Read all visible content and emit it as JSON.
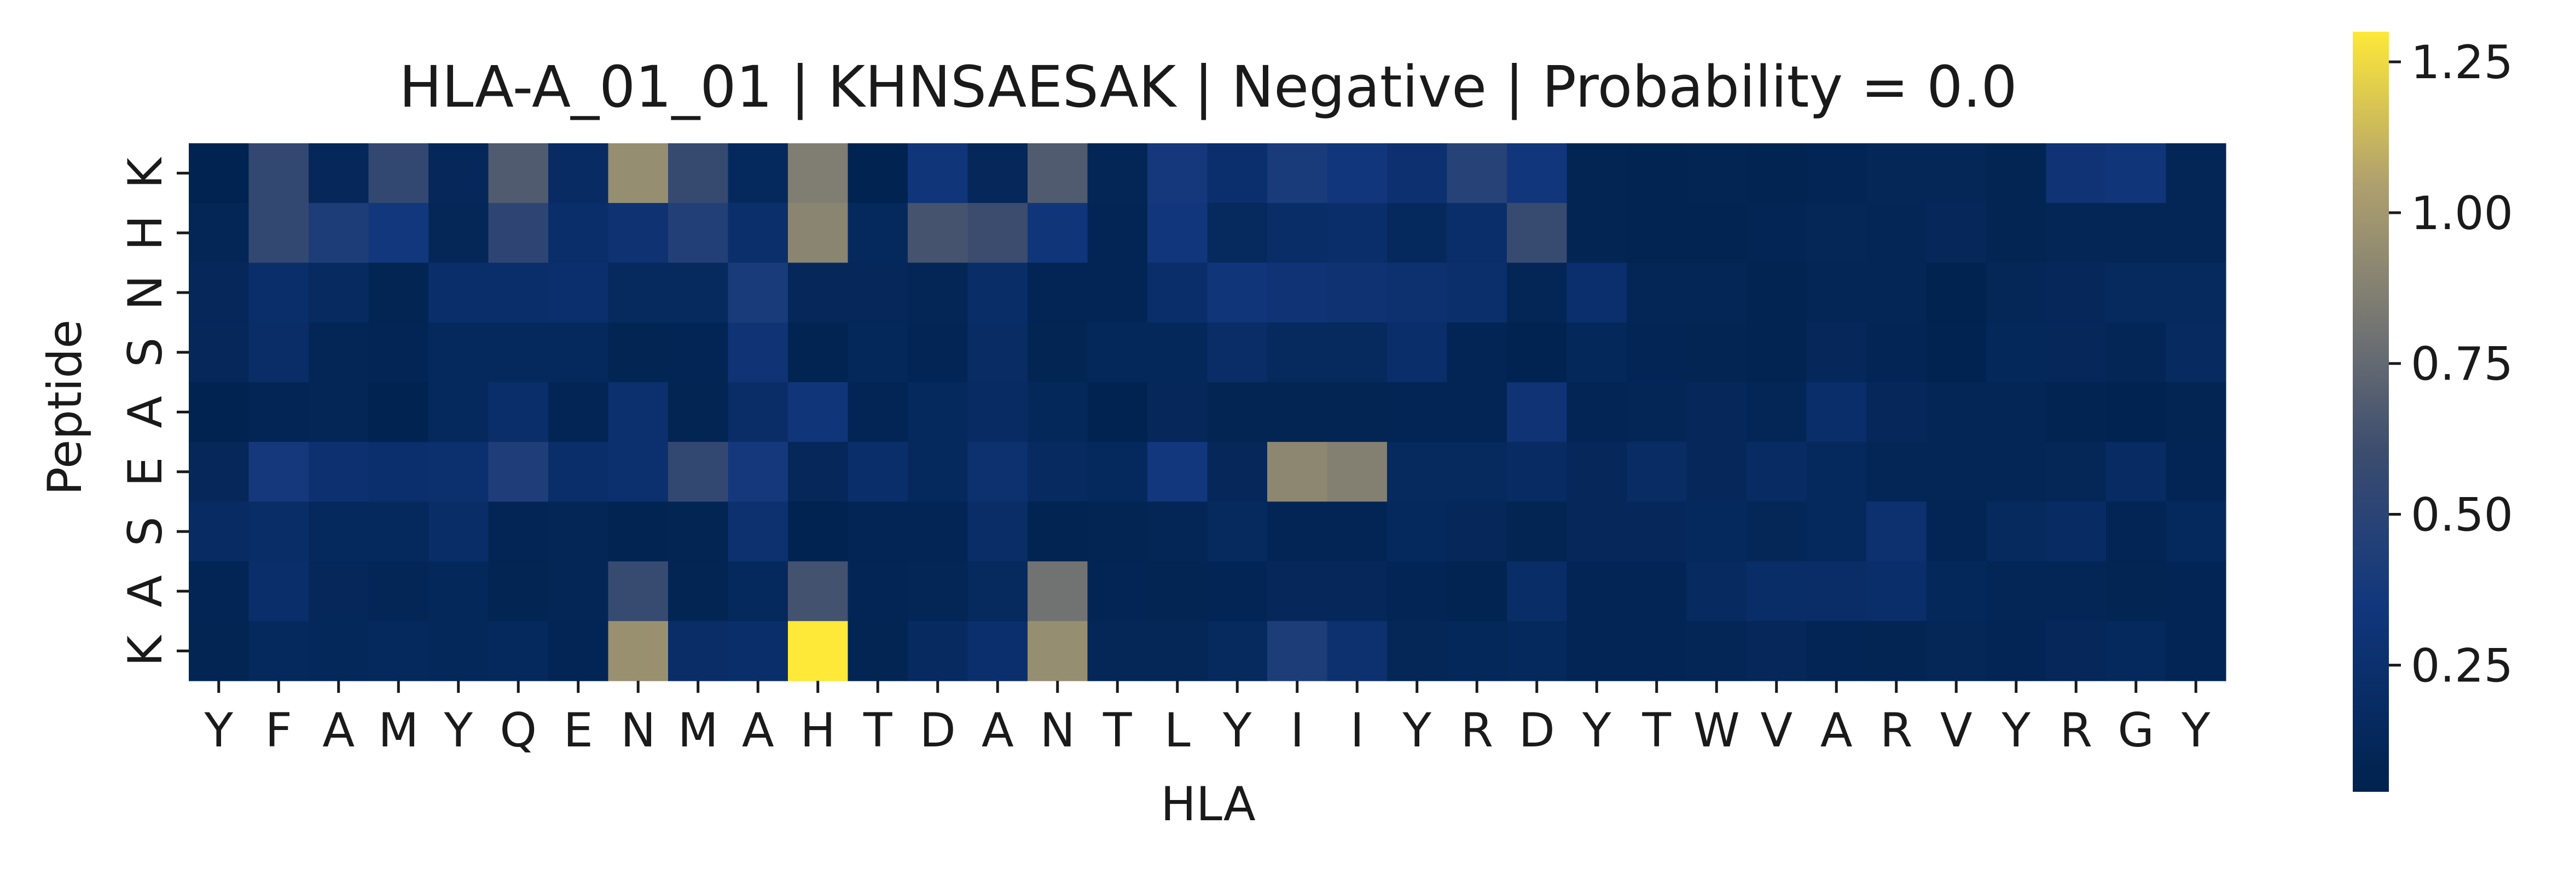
{
  "chart_data": {
    "type": "heatmap",
    "title": "HLA-A_01_01 | KHNSAESAK | Negative | Probability = 0.0",
    "xlabel": "HLA",
    "ylabel": "Peptide",
    "x_categories": [
      "Y",
      "F",
      "A",
      "M",
      "Y",
      "Q",
      "E",
      "N",
      "M",
      "A",
      "H",
      "T",
      "D",
      "A",
      "N",
      "T",
      "L",
      "Y",
      "I",
      "I",
      "Y",
      "R",
      "D",
      "Y",
      "T",
      "W",
      "V",
      "A",
      "R",
      "V",
      "Y",
      "R",
      "G",
      "Y"
    ],
    "y_categories": [
      "K",
      "H",
      "N",
      "S",
      "A",
      "E",
      "S",
      "A",
      "K"
    ],
    "colormap": "cividis",
    "colorbar": {
      "min": 0.04,
      "max": 1.3,
      "ticks": [
        0.25,
        0.5,
        0.75,
        1.0,
        1.25
      ],
      "tick_labels": [
        "0.25",
        "0.50",
        "0.75",
        "1.00",
        "1.25"
      ]
    },
    "values": [
      [
        0.06,
        0.55,
        0.12,
        0.55,
        0.12,
        0.68,
        0.18,
        0.95,
        0.57,
        0.14,
        0.86,
        0.06,
        0.33,
        0.12,
        0.68,
        0.1,
        0.37,
        0.24,
        0.4,
        0.34,
        0.27,
        0.48,
        0.34,
        0.08,
        0.07,
        0.08,
        0.07,
        0.09,
        0.11,
        0.11,
        0.08,
        0.3,
        0.32,
        0.1
      ],
      [
        0.1,
        0.55,
        0.42,
        0.35,
        0.11,
        0.52,
        0.22,
        0.28,
        0.45,
        0.23,
        0.9,
        0.14,
        0.64,
        0.6,
        0.33,
        0.09,
        0.34,
        0.15,
        0.2,
        0.22,
        0.14,
        0.22,
        0.58,
        0.08,
        0.07,
        0.07,
        0.09,
        0.11,
        0.1,
        0.12,
        0.08,
        0.1,
        0.1,
        0.1
      ],
      [
        0.12,
        0.22,
        0.16,
        0.08,
        0.22,
        0.22,
        0.24,
        0.15,
        0.15,
        0.4,
        0.12,
        0.12,
        0.1,
        0.2,
        0.09,
        0.09,
        0.22,
        0.32,
        0.3,
        0.28,
        0.26,
        0.23,
        0.1,
        0.24,
        0.1,
        0.1,
        0.07,
        0.1,
        0.1,
        0.05,
        0.11,
        0.12,
        0.15,
        0.15
      ],
      [
        0.12,
        0.21,
        0.1,
        0.09,
        0.14,
        0.14,
        0.14,
        0.08,
        0.09,
        0.3,
        0.07,
        0.13,
        0.09,
        0.19,
        0.08,
        0.13,
        0.13,
        0.21,
        0.15,
        0.15,
        0.22,
        0.09,
        0.06,
        0.13,
        0.09,
        0.08,
        0.07,
        0.12,
        0.09,
        0.06,
        0.13,
        0.12,
        0.1,
        0.16
      ],
      [
        0.06,
        0.09,
        0.1,
        0.06,
        0.14,
        0.22,
        0.09,
        0.25,
        0.08,
        0.21,
        0.32,
        0.09,
        0.14,
        0.18,
        0.13,
        0.06,
        0.12,
        0.08,
        0.08,
        0.08,
        0.09,
        0.09,
        0.3,
        0.09,
        0.1,
        0.12,
        0.1,
        0.22,
        0.12,
        0.1,
        0.1,
        0.07,
        0.06,
        0.08
      ],
      [
        0.12,
        0.37,
        0.27,
        0.24,
        0.25,
        0.43,
        0.22,
        0.25,
        0.55,
        0.37,
        0.12,
        0.22,
        0.14,
        0.26,
        0.16,
        0.14,
        0.36,
        0.12,
        0.91,
        0.87,
        0.15,
        0.15,
        0.18,
        0.12,
        0.19,
        0.12,
        0.18,
        0.14,
        0.1,
        0.1,
        0.1,
        0.11,
        0.18,
        0.09
      ],
      [
        0.18,
        0.2,
        0.14,
        0.14,
        0.2,
        0.09,
        0.1,
        0.07,
        0.08,
        0.26,
        0.06,
        0.09,
        0.09,
        0.21,
        0.07,
        0.08,
        0.1,
        0.15,
        0.09,
        0.09,
        0.14,
        0.12,
        0.08,
        0.12,
        0.12,
        0.14,
        0.11,
        0.14,
        0.26,
        0.09,
        0.15,
        0.18,
        0.09,
        0.14
      ],
      [
        0.09,
        0.22,
        0.12,
        0.1,
        0.13,
        0.08,
        0.1,
        0.58,
        0.08,
        0.14,
        0.63,
        0.09,
        0.1,
        0.15,
        0.8,
        0.09,
        0.08,
        0.09,
        0.12,
        0.12,
        0.09,
        0.07,
        0.2,
        0.09,
        0.09,
        0.16,
        0.2,
        0.21,
        0.22,
        0.13,
        0.1,
        0.1,
        0.08,
        0.09
      ],
      [
        0.08,
        0.14,
        0.13,
        0.14,
        0.13,
        0.14,
        0.09,
        0.96,
        0.21,
        0.22,
        1.3,
        0.08,
        0.16,
        0.24,
        0.95,
        0.11,
        0.11,
        0.15,
        0.42,
        0.26,
        0.11,
        0.13,
        0.14,
        0.09,
        0.09,
        0.1,
        0.12,
        0.09,
        0.08,
        0.11,
        0.09,
        0.12,
        0.14,
        0.09
      ]
    ]
  }
}
